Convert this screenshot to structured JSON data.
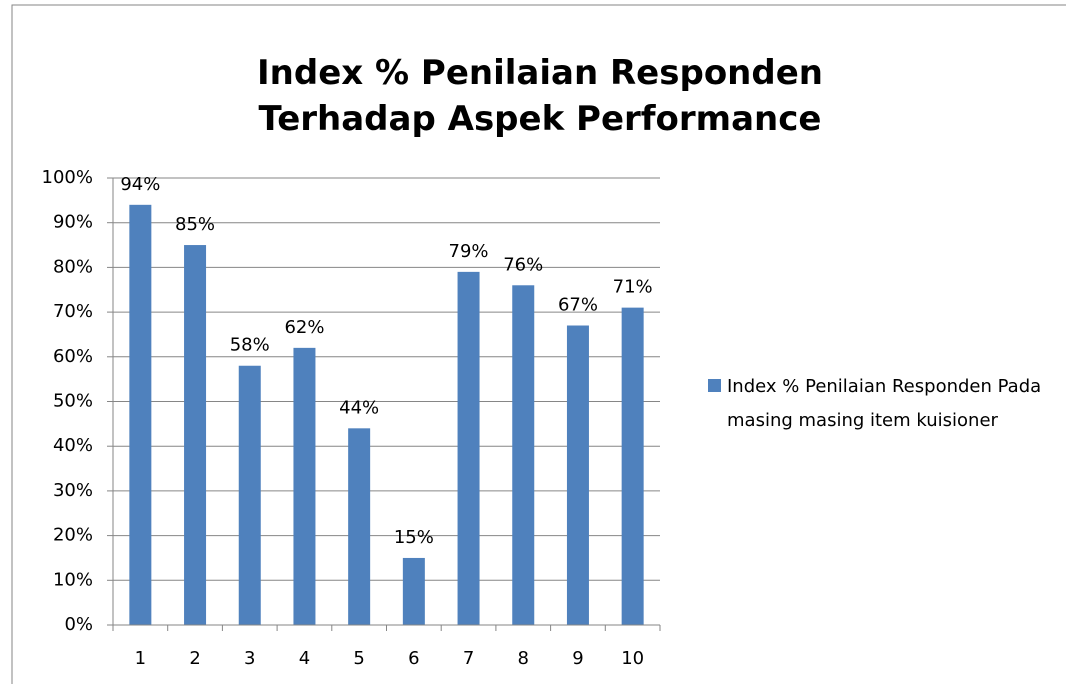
{
  "chart_data": {
    "type": "bar",
    "title": "Index % Penilaian Responden Terhadap Aspek Performance",
    "categories": [
      "1",
      "2",
      "3",
      "4",
      "5",
      "6",
      "7",
      "8",
      "9",
      "10"
    ],
    "series": [
      {
        "name": "Index % Penilaian Responden Pada masing masing item kuisioner",
        "color": "#4f81bd",
        "values": [
          94,
          85,
          58,
          62,
          44,
          15,
          79,
          76,
          67,
          71
        ],
        "value_labels": [
          "94%",
          "85%",
          "58%",
          "62%",
          "44%",
          "15%",
          "79%",
          "76%",
          "67%",
          "71%"
        ]
      }
    ],
    "ylim": [
      0,
      100
    ],
    "yticks": [
      {
        "value": 0,
        "label": "0%"
      },
      {
        "value": 10,
        "label": "10%"
      },
      {
        "value": 20,
        "label": "20%"
      },
      {
        "value": 30,
        "label": "30%"
      },
      {
        "value": 40,
        "label": "40%"
      },
      {
        "value": 50,
        "label": "50%"
      },
      {
        "value": 60,
        "label": "60%"
      },
      {
        "value": 70,
        "label": "70%"
      },
      {
        "value": 80,
        "label": "80%"
      },
      {
        "value": 90,
        "label": "90%"
      },
      {
        "value": 100,
        "label": "100%"
      }
    ],
    "grid": true,
    "legend": "right"
  }
}
